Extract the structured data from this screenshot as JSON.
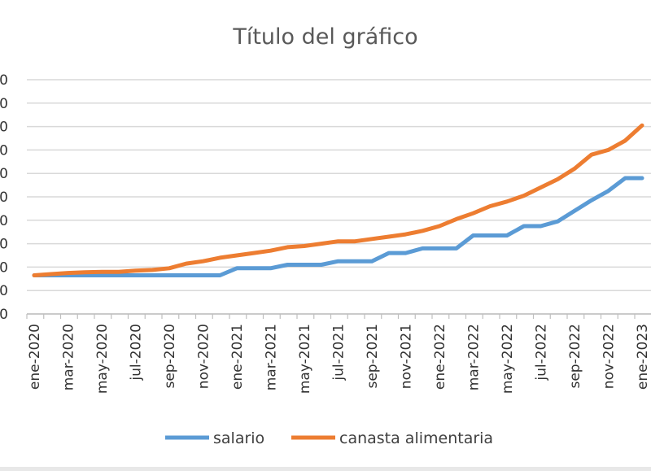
{
  "chart_data": {
    "type": "line",
    "title": "Título del gráfico",
    "xlabel": "",
    "ylabel": "",
    "grid": true,
    "legend_position": "bottom",
    "categories": [
      "ene-2020",
      "feb-2020",
      "mar-2020",
      "abr-2020",
      "may-2020",
      "jun-2020",
      "jul-2020",
      "ago-2020",
      "sep-2020",
      "oct-2020",
      "nov-2020",
      "dic-2020",
      "ene-2021",
      "feb-2021",
      "mar-2021",
      "abr-2021",
      "may-2021",
      "jun-2021",
      "jul-2021",
      "ago-2021",
      "sep-2021",
      "oct-2021",
      "nov-2021",
      "dic-2021",
      "ene-2022",
      "feb-2022",
      "mar-2022",
      "abr-2022",
      "may-2022",
      "jun-2022",
      "jul-2022",
      "ago-2022",
      "sep-2022",
      "oct-2022",
      "nov-2022",
      "dic-2022",
      "ene-2023"
    ],
    "x_tick_labels": [
      "ene-2020",
      "mar-2020",
      "may-2020",
      "jul-2020",
      "sep-2020",
      "nov-2020",
      "ene-2021",
      "mar-2021",
      "may-2021",
      "jul-2021",
      "sep-2021",
      "nov-2021",
      "ene-2022",
      "mar-2022",
      "may-2022",
      "jul-2022",
      "sep-2022",
      "nov-2022",
      "ene-2023"
    ],
    "y_tick_labels": [
      "0",
      "0",
      "0",
      "0",
      "0",
      "0",
      "0",
      "0",
      "0",
      "0",
      "0"
    ],
    "ylim": [
      0,
      10
    ],
    "series": [
      {
        "name": "salario",
        "color": "#5b9bd5",
        "values": [
          1.65,
          1.65,
          1.65,
          1.65,
          1.65,
          1.65,
          1.65,
          1.65,
          1.65,
          1.65,
          1.65,
          1.65,
          1.95,
          1.95,
          1.95,
          2.1,
          2.1,
          2.1,
          2.25,
          2.25,
          2.25,
          2.6,
          2.6,
          2.8,
          2.8,
          2.8,
          3.35,
          3.35,
          3.35,
          3.75,
          3.75,
          3.95,
          4.4,
          4.85,
          5.25,
          5.8,
          5.8
        ]
      },
      {
        "name": "canasta alimentaria",
        "color": "#ed7d31",
        "values": [
          1.65,
          1.7,
          1.75,
          1.78,
          1.8,
          1.8,
          1.85,
          1.88,
          1.95,
          2.15,
          2.25,
          2.4,
          2.5,
          2.6,
          2.7,
          2.85,
          2.9,
          3.0,
          3.1,
          3.1,
          3.2,
          3.3,
          3.4,
          3.55,
          3.75,
          4.05,
          4.3,
          4.6,
          4.8,
          5.05,
          5.4,
          5.75,
          6.2,
          6.8,
          7.0,
          7.4,
          8.05
        ]
      }
    ]
  }
}
